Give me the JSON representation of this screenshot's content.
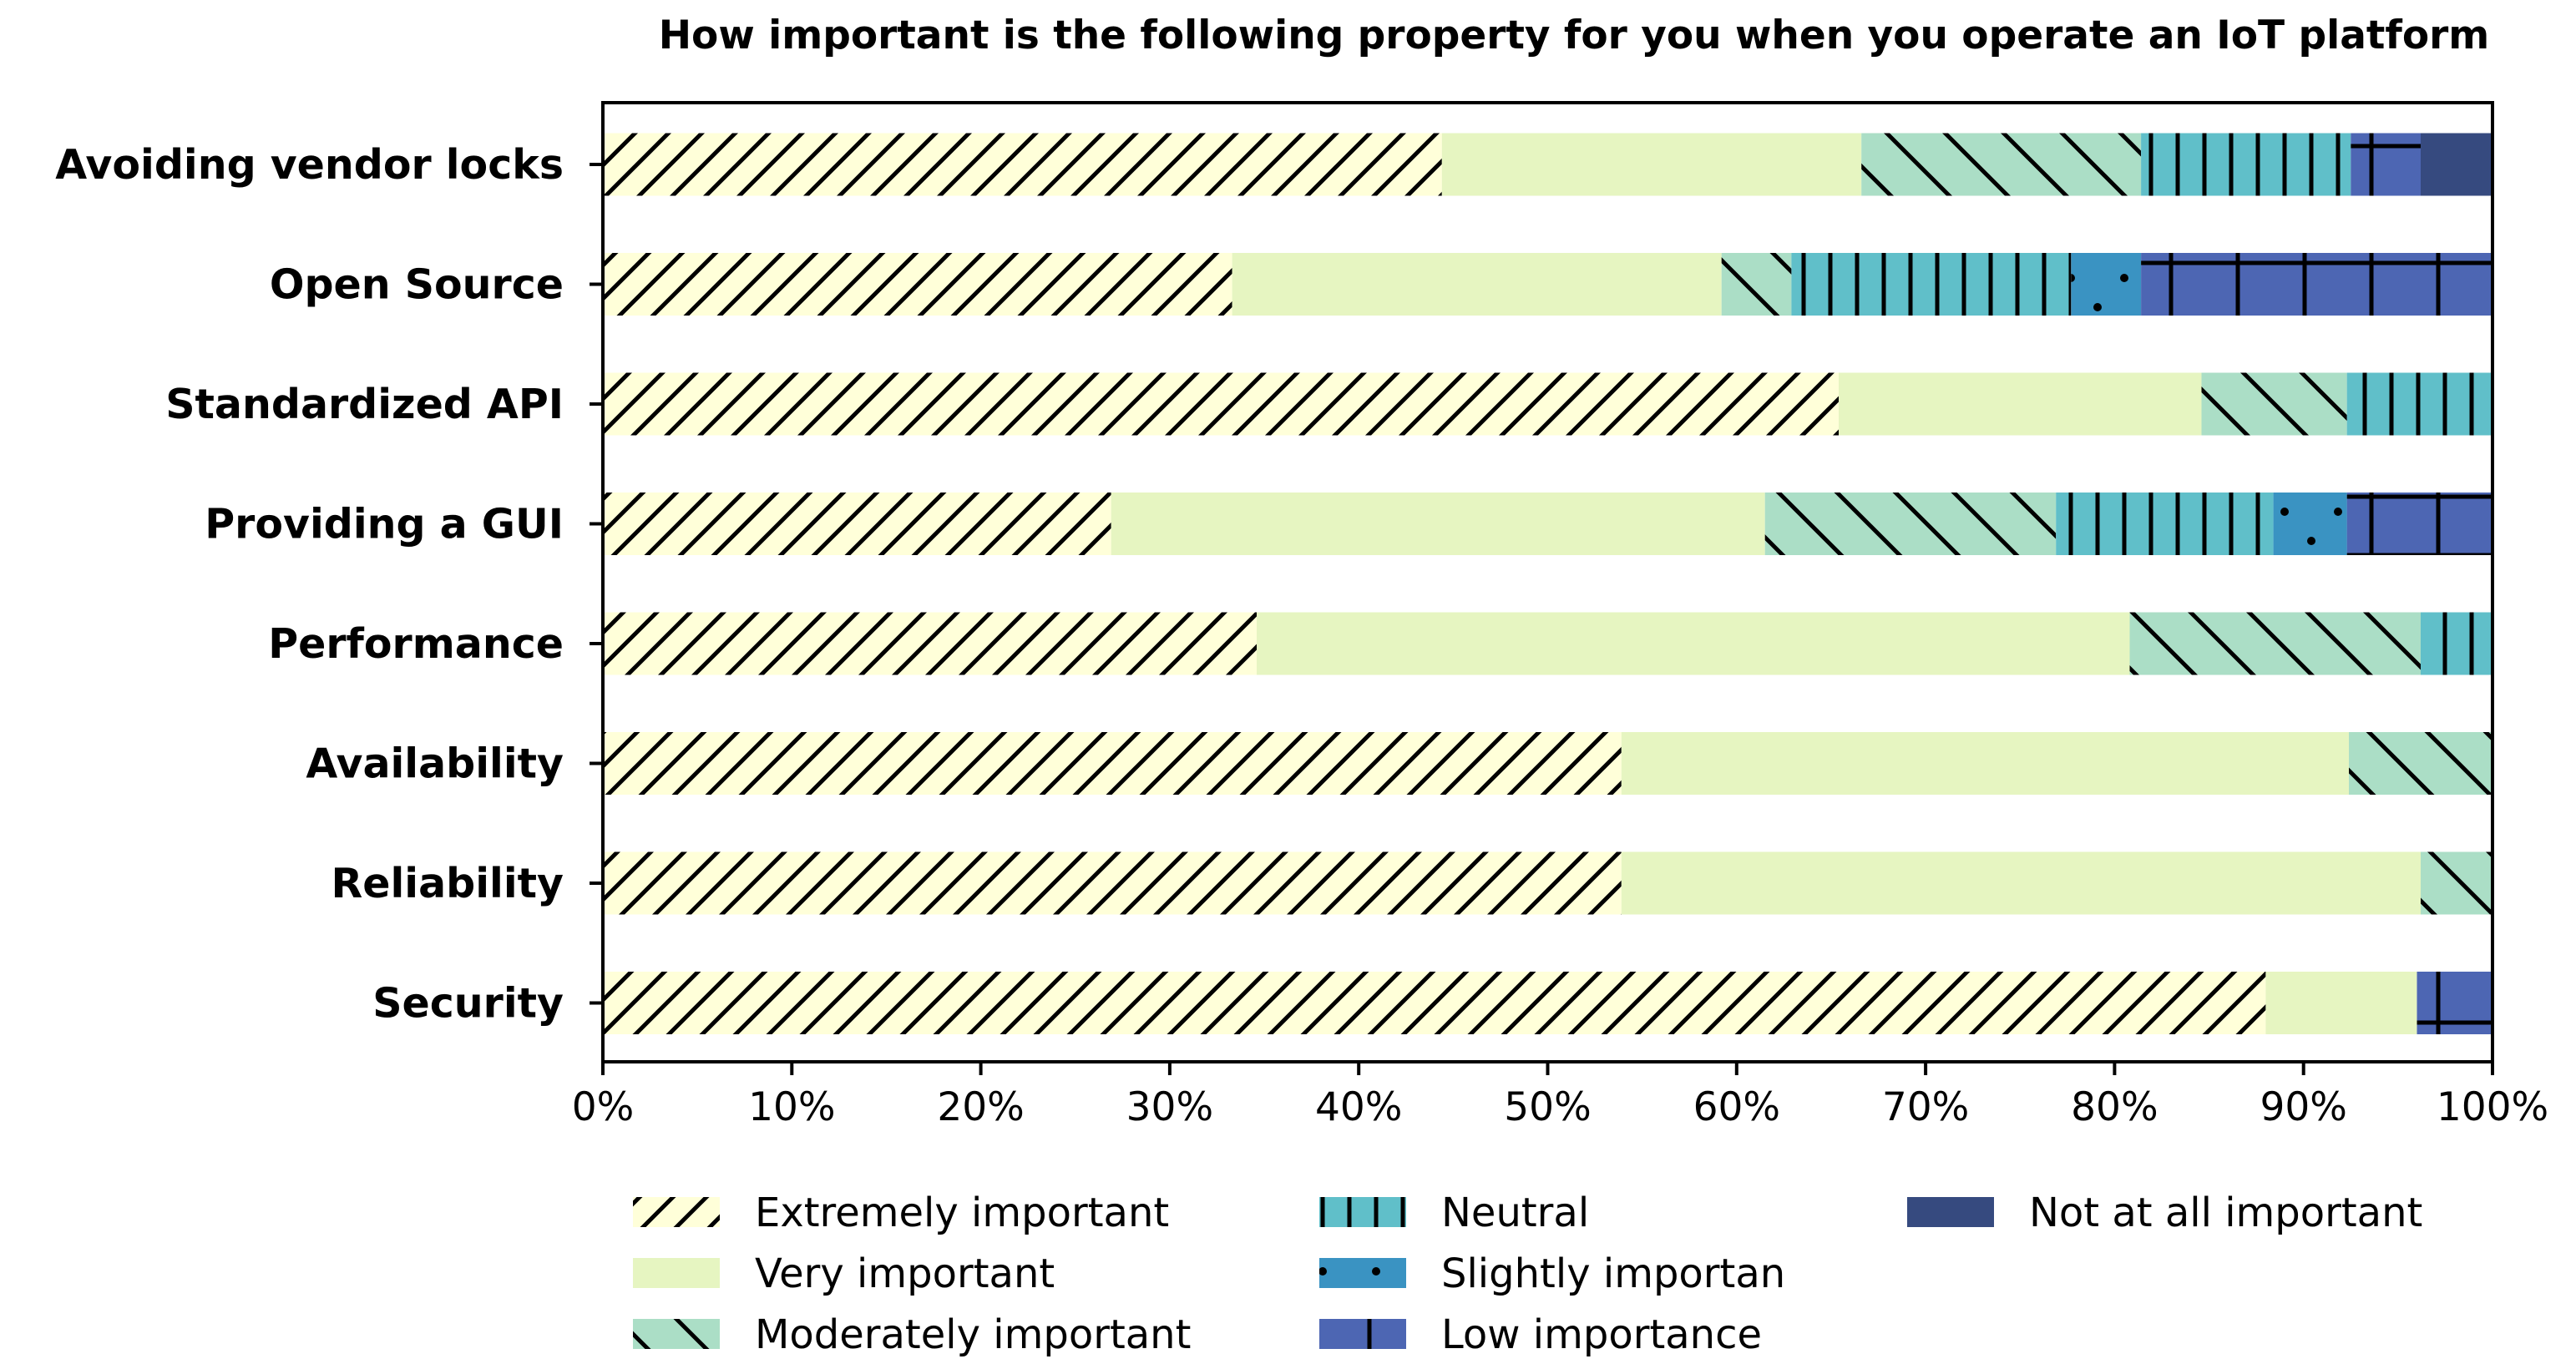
{
  "chart_data": {
    "type": "bar",
    "orientation": "horizontal",
    "stacked": true,
    "title": "How important is the following property for you when you operate an IoT platform",
    "xlabel": "",
    "ylabel": "",
    "xlim": [
      0,
      100
    ],
    "x_ticks": [
      "0%",
      "10%",
      "20%",
      "30%",
      "40%",
      "50%",
      "60%",
      "70%",
      "80%",
      "90%",
      "100%"
    ],
    "grid": false,
    "legend_position": "bottom",
    "categories": [
      "Avoiding vendor locks",
      "Open Source",
      "Standardized API",
      "Providing a GUI",
      "Performance",
      "Availability",
      "Reliability",
      "Security"
    ],
    "series": [
      {
        "name": "Extremely important",
        "color": "#ffffd9",
        "pattern": "diagonal-forward",
        "values": [
          44.4,
          33.3,
          65.4,
          26.9,
          34.6,
          53.9,
          53.9,
          88.0
        ]
      },
      {
        "name": "Very important",
        "color": "#e6f5c1",
        "pattern": "none",
        "values": [
          22.2,
          25.9,
          19.2,
          34.6,
          46.2,
          38.5,
          42.3,
          8.0
        ]
      },
      {
        "name": "Moderately important",
        "color": "#abdec6",
        "pattern": "diagonal-back",
        "values": [
          14.8,
          3.7,
          7.7,
          15.4,
          15.4,
          7.6,
          3.8,
          0
        ]
      },
      {
        "name": "Neutral",
        "color": "#60bfc9",
        "pattern": "vertical",
        "values": [
          11.1,
          14.8,
          7.7,
          11.5,
          3.8,
          0,
          0,
          0
        ]
      },
      {
        "name": "Slightly importan",
        "color": "#3a93c2",
        "pattern": "dots",
        "values": [
          0,
          3.7,
          0,
          3.9,
          0,
          0,
          0,
          0
        ]
      },
      {
        "name": "Low importance",
        "color": "#4d66b3",
        "pattern": "cross",
        "values": [
          3.7,
          18.6,
          0,
          7.7,
          0,
          0,
          0,
          4.0
        ]
      },
      {
        "name": "Not at all important",
        "color": "#364a7f",
        "pattern": "none",
        "values": [
          3.8,
          0,
          0,
          0,
          0,
          0,
          0,
          0
        ]
      }
    ]
  }
}
